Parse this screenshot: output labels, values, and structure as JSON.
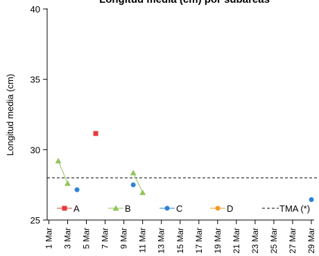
{
  "chart_data": {
    "type": "line",
    "title": "Longitud media (cm) por subáreas",
    "ylabel": "Longitud media (cm)",
    "xlabel": "",
    "ylim": [
      25,
      40
    ],
    "yticks": [
      25,
      30,
      35,
      40
    ],
    "x_day_range": [
      1,
      29
    ],
    "xtick_labels": [
      "1 Mar",
      "3 Mar",
      "5 Mar",
      "7 Mar",
      "9 Mar",
      "11 Mar",
      "13 Mar",
      "15 Mar",
      "17 Mar",
      "19 Mar",
      "21 Mar",
      "23 Mar",
      "25 Mar",
      "27 Mar",
      "29 Mar"
    ],
    "grid": false,
    "legend_position": "bottom",
    "series": [
      {
        "name": "A",
        "color": "#e83a3a",
        "marker": "square",
        "points": [
          {
            "x": "6 Mar",
            "y": 31.15
          }
        ]
      },
      {
        "name": "B",
        "color": "#92c45a",
        "marker": "triangle",
        "points": [
          {
            "x": "2 Mar",
            "y": 29.2
          },
          {
            "x": "3 Mar",
            "y": 27.6
          },
          {
            "x": "10 Mar",
            "y": 28.35
          },
          {
            "x": "11 Mar",
            "y": 26.95
          }
        ]
      },
      {
        "name": "C",
        "color": "#2b83d8",
        "marker": "circle",
        "points": [
          {
            "x": "4 Mar",
            "y": 27.15
          },
          {
            "x": "10 Mar",
            "y": 27.5
          },
          {
            "x": "29 Mar",
            "y": 26.45
          }
        ]
      },
      {
        "name": "D",
        "color": "#f39a1e",
        "marker": "circle",
        "points": []
      }
    ],
    "reference_line": {
      "name": "TMA (*)",
      "y": 28,
      "style": "dashed",
      "color": "#000000"
    }
  }
}
